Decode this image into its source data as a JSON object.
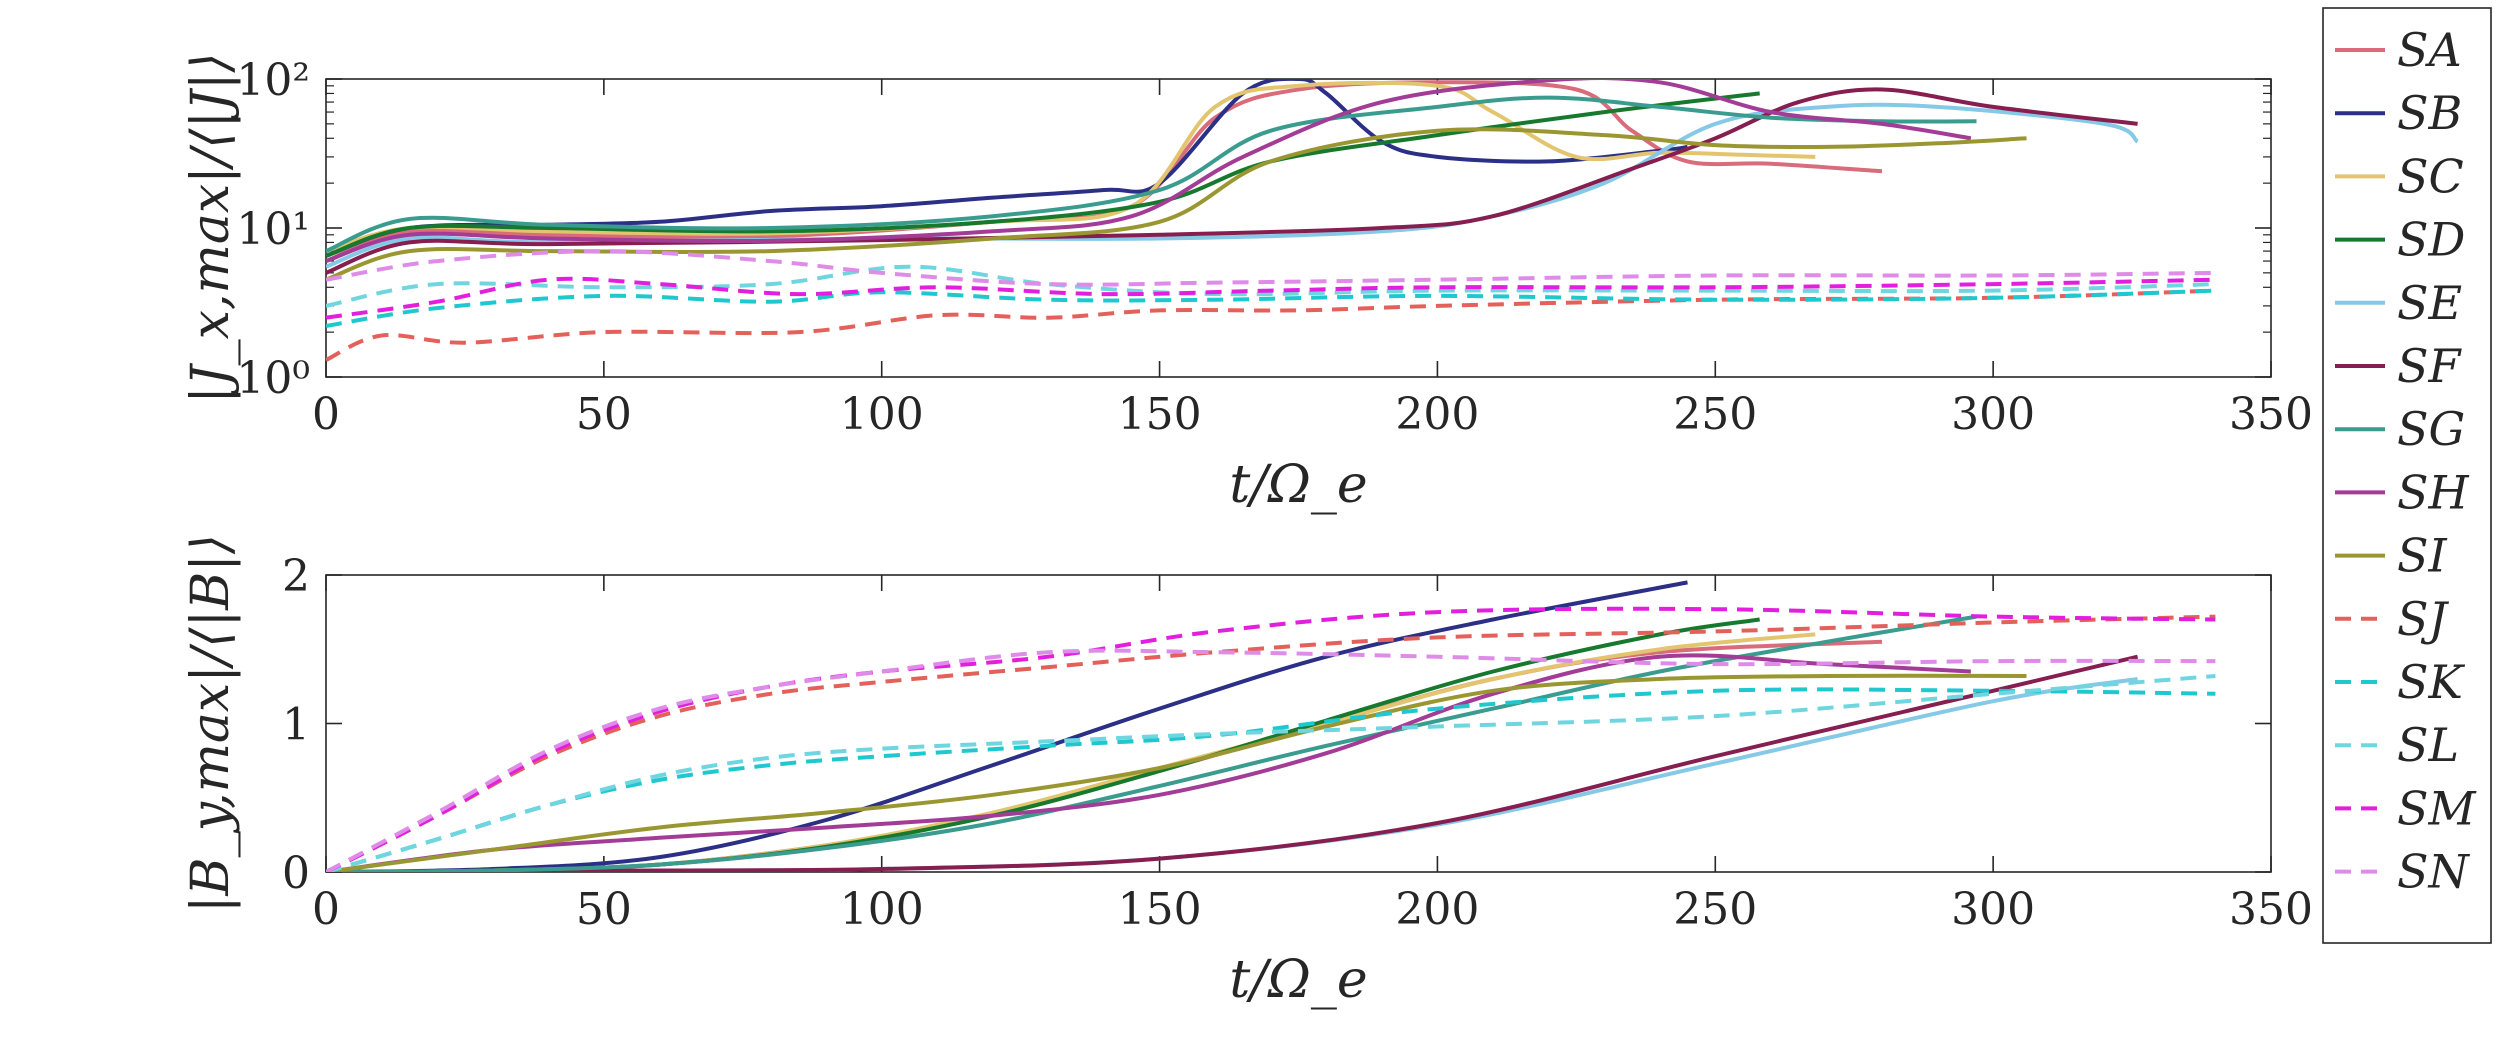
{
  "chart_data": [
    {
      "type": "line",
      "id": "top",
      "xlabel": "t/Ω_e",
      "ylabel": "|J_x,max|/⟨|J|⟩",
      "xlim": [
        0,
        350
      ],
      "ylim": [
        1,
        100
      ],
      "yscale": "log",
      "xticks": [
        0,
        50,
        100,
        150,
        200,
        250,
        300,
        350
      ],
      "xtick_labels": [
        "0",
        "50",
        "100",
        "150",
        "200",
        "250",
        "300",
        "350"
      ],
      "yticks": [
        1,
        10,
        100
      ],
      "ytick_labels": [
        "10⁰",
        "10¹",
        "10²"
      ],
      "series": [
        {
          "name": "SA",
          "x": [
            0,
            15,
            40,
            80,
            120,
            145,
            160,
            175,
            200,
            225,
            235,
            245,
            260,
            280
          ],
          "y": [
            6.0,
            9.5,
            9.0,
            8.8,
            11,
            14,
            55,
            85,
            95,
            85,
            45,
            28,
            27,
            24
          ]
        },
        {
          "name": "SB",
          "x": [
            0,
            15,
            40,
            60,
            80,
            100,
            120,
            140,
            150,
            165,
            175,
            180,
            190,
            200,
            220,
            240,
            245
          ],
          "y": [
            6.5,
            10,
            10.5,
            11,
            13,
            14,
            16,
            18,
            20,
            80,
            100,
            80,
            38,
            30,
            28,
            33,
            35
          ]
        },
        {
          "name": "SC",
          "x": [
            0,
            15,
            40,
            80,
            120,
            145,
            160,
            175,
            200,
            210,
            225,
            240,
            255,
            268
          ],
          "y": [
            7.0,
            10,
            9.5,
            9.2,
            11,
            14,
            65,
            90,
            90,
            60,
            30,
            32,
            31,
            30
          ]
        },
        {
          "name": "SD",
          "x": [
            0,
            15,
            40,
            80,
            120,
            150,
            170,
            200,
            230,
            258
          ],
          "y": [
            6.5,
            10,
            10,
            9.5,
            11,
            15,
            28,
            42,
            60,
            80
          ]
        },
        {
          "name": "SE",
          "x": [
            0,
            15,
            40,
            100,
            150,
            190,
            210,
            230,
            250,
            270,
            290,
            320,
            326
          ],
          "y": [
            5.5,
            8.5,
            8.0,
            8.5,
            8.5,
            9.5,
            12,
            20,
            50,
            65,
            65,
            50,
            38
          ]
        },
        {
          "name": "SF",
          "x": [
            0,
            15,
            40,
            100,
            150,
            190,
            210,
            235,
            250,
            265,
            280,
            300,
            326
          ],
          "y": [
            5.0,
            8.0,
            7.8,
            8.3,
            9.0,
            10,
            12,
            25,
            40,
            70,
            85,
            65,
            50
          ]
        },
        {
          "name": "SG",
          "x": [
            0,
            15,
            40,
            80,
            120,
            150,
            170,
            200,
            220,
            240,
            260,
            280,
            297
          ],
          "y": [
            7.0,
            11.5,
            10.5,
            10,
            12,
            18,
            45,
            65,
            75,
            65,
            55,
            52,
            52
          ]
        },
        {
          "name": "SH",
          "x": [
            0,
            15,
            40,
            80,
            120,
            145,
            165,
            190,
            220,
            240,
            260,
            280,
            296
          ],
          "y": [
            6.0,
            9.0,
            8.5,
            8.2,
            9.5,
            12,
            30,
            70,
            98,
            95,
            60,
            50,
            40
          ]
        },
        {
          "name": "SI",
          "x": [
            0,
            15,
            40,
            80,
            120,
            150,
            170,
            200,
            230,
            250,
            270,
            290,
            306
          ],
          "y": [
            4.5,
            7.0,
            7.0,
            7.0,
            8.5,
            11,
            28,
            45,
            42,
            36,
            35,
            37,
            40
          ]
        },
        {
          "name": "SJ",
          "x": [
            0,
            10,
            25,
            50,
            85,
            110,
            130,
            150,
            175,
            200,
            250,
            300,
            340
          ],
          "y": [
            1.3,
            1.9,
            1.7,
            2.0,
            2.0,
            2.6,
            2.5,
            2.8,
            2.8,
            3.0,
            3.3,
            3.4,
            3.8
          ]
        },
        {
          "name": "SK",
          "x": [
            0,
            20,
            50,
            80,
            100,
            130,
            160,
            200,
            250,
            300,
            340
          ],
          "y": [
            2.2,
            2.9,
            3.5,
            3.2,
            3.7,
            3.3,
            3.3,
            3.5,
            3.3,
            3.4,
            3.8
          ]
        },
        {
          "name": "SL",
          "x": [
            0,
            20,
            50,
            80,
            105,
            130,
            160,
            200,
            250,
            300,
            340
          ],
          "y": [
            3.0,
            4.2,
            4.0,
            4.2,
            5.5,
            4.2,
            3.6,
            3.8,
            3.8,
            3.8,
            4.2
          ]
        },
        {
          "name": "SM",
          "x": [
            0,
            20,
            40,
            60,
            85,
            110,
            140,
            170,
            200,
            250,
            300,
            340
          ],
          "y": [
            2.5,
            3.2,
            4.5,
            4.2,
            3.6,
            4.0,
            3.6,
            3.8,
            4.0,
            4.0,
            4.2,
            4.5
          ]
        },
        {
          "name": "SN",
          "x": [
            0,
            20,
            50,
            80,
            100,
            130,
            160,
            200,
            250,
            300,
            340
          ],
          "y": [
            4.5,
            6.0,
            7.0,
            6.0,
            5.0,
            4.2,
            4.3,
            4.5,
            4.8,
            4.8,
            5.0
          ]
        }
      ]
    },
    {
      "type": "line",
      "id": "bottom",
      "xlabel": "t/Ω_e",
      "ylabel": "|B_y,max|/⟨|B|⟩",
      "xlim": [
        0,
        350
      ],
      "ylim": [
        0,
        2
      ],
      "xticks": [
        0,
        50,
        100,
        150,
        200,
        250,
        300,
        350
      ],
      "xtick_labels": [
        "0",
        "50",
        "100",
        "150",
        "200",
        "250",
        "300",
        "350"
      ],
      "yticks": [
        0,
        1,
        2
      ],
      "ytick_labels": [
        "0",
        "1",
        "2"
      ],
      "series": [
        {
          "name": "SA",
          "x": [
            0,
            30,
            60,
            90,
            120,
            150,
            180,
            210,
            240,
            280
          ],
          "y": [
            0,
            0.01,
            0.05,
            0.18,
            0.38,
            0.68,
            1.0,
            1.3,
            1.48,
            1.55
          ]
        },
        {
          "name": "SB",
          "x": [
            0,
            30,
            60,
            90,
            120,
            150,
            180,
            210,
            245
          ],
          "y": [
            0,
            0.02,
            0.1,
            0.35,
            0.72,
            1.1,
            1.45,
            1.7,
            1.95
          ]
        },
        {
          "name": "SC",
          "x": [
            0,
            30,
            60,
            90,
            120,
            150,
            180,
            210,
            240,
            268
          ],
          "y": [
            0,
            0.01,
            0.05,
            0.18,
            0.4,
            0.7,
            1.0,
            1.3,
            1.5,
            1.6
          ]
        },
        {
          "name": "SD",
          "x": [
            0,
            30,
            60,
            90,
            120,
            150,
            180,
            210,
            240,
            258
          ],
          "y": [
            0,
            0.01,
            0.05,
            0.17,
            0.38,
            0.68,
            1.02,
            1.35,
            1.6,
            1.7
          ]
        },
        {
          "name": "SE",
          "x": [
            0,
            60,
            100,
            150,
            200,
            250,
            300,
            326
          ],
          "y": [
            0,
            0.01,
            0.02,
            0.09,
            0.32,
            0.73,
            1.15,
            1.3
          ]
        },
        {
          "name": "SF",
          "x": [
            0,
            60,
            100,
            150,
            200,
            250,
            300,
            326
          ],
          "y": [
            0,
            0.01,
            0.02,
            0.09,
            0.33,
            0.78,
            1.22,
            1.45
          ]
        },
        {
          "name": "SG",
          "x": [
            0,
            30,
            60,
            90,
            120,
            150,
            180,
            210,
            240,
            270,
            297
          ],
          "y": [
            0,
            0.01,
            0.05,
            0.16,
            0.33,
            0.58,
            0.85,
            1.1,
            1.35,
            1.55,
            1.72
          ]
        },
        {
          "name": "SH",
          "x": [
            0,
            30,
            60,
            90,
            120,
            150,
            180,
            210,
            240,
            270,
            296
          ],
          "y": [
            0,
            0.15,
            0.23,
            0.3,
            0.38,
            0.52,
            0.8,
            1.2,
            1.45,
            1.4,
            1.35
          ]
        },
        {
          "name": "SI",
          "x": [
            0,
            30,
            60,
            90,
            120,
            150,
            180,
            210,
            240,
            270,
            306
          ],
          "y": [
            0,
            0.15,
            0.3,
            0.4,
            0.52,
            0.7,
            0.98,
            1.22,
            1.3,
            1.32,
            1.32
          ]
        },
        {
          "name": "SJ",
          "x": [
            0,
            20,
            40,
            60,
            80,
            100,
            130,
            160,
            200,
            250,
            300,
            340
          ],
          "y": [
            0,
            0.38,
            0.78,
            1.05,
            1.2,
            1.28,
            1.38,
            1.48,
            1.58,
            1.62,
            1.68,
            1.72
          ]
        },
        {
          "name": "SK",
          "x": [
            0,
            20,
            40,
            60,
            80,
            100,
            130,
            160,
            200,
            250,
            300,
            340
          ],
          "y": [
            0,
            0.22,
            0.45,
            0.62,
            0.72,
            0.78,
            0.85,
            0.92,
            1.1,
            1.22,
            1.22,
            1.2
          ]
        },
        {
          "name": "SL",
          "x": [
            0,
            20,
            40,
            60,
            80,
            100,
            130,
            160,
            200,
            250,
            300,
            340
          ],
          "y": [
            0,
            0.22,
            0.45,
            0.65,
            0.77,
            0.83,
            0.88,
            0.93,
            0.98,
            1.05,
            1.2,
            1.32
          ]
        },
        {
          "name": "SM",
          "x": [
            0,
            20,
            40,
            60,
            80,
            100,
            130,
            160,
            200,
            250,
            300,
            340
          ],
          "y": [
            0,
            0.38,
            0.8,
            1.08,
            1.25,
            1.35,
            1.45,
            1.62,
            1.75,
            1.77,
            1.72,
            1.7
          ]
        },
        {
          "name": "SN",
          "x": [
            0,
            20,
            40,
            60,
            80,
            100,
            130,
            160,
            200,
            250,
            300,
            340
          ],
          "y": [
            0,
            0.4,
            0.82,
            1.1,
            1.25,
            1.35,
            1.48,
            1.48,
            1.45,
            1.4,
            1.42,
            1.42
          ]
        }
      ]
    }
  ],
  "legend": {
    "placement": "right-outside",
    "entries": [
      {
        "name": "SA",
        "color": "#d96b7a",
        "style": "solid"
      },
      {
        "name": "SB",
        "color": "#2c2f86",
        "style": "solid"
      },
      {
        "name": "SC",
        "color": "#e2c56e",
        "style": "solid"
      },
      {
        "name": "SD",
        "color": "#17792e",
        "style": "solid"
      },
      {
        "name": "SE",
        "color": "#85c9e6",
        "style": "solid"
      },
      {
        "name": "SF",
        "color": "#861e50",
        "style": "solid"
      },
      {
        "name": "SG",
        "color": "#3a9c8e",
        "style": "solid"
      },
      {
        "name": "SH",
        "color": "#a33c96",
        "style": "solid"
      },
      {
        "name": "SI",
        "color": "#9a9733",
        "style": "solid"
      },
      {
        "name": "SJ",
        "color": "#e4605a",
        "style": "dashed"
      },
      {
        "name": "SK",
        "color": "#1fc8cf",
        "style": "dashed"
      },
      {
        "name": "SL",
        "color": "#6fd6e0",
        "style": "dashed"
      },
      {
        "name": "SM",
        "color": "#e21fde",
        "style": "dashed"
      },
      {
        "name": "SN",
        "color": "#de8ce8",
        "style": "dashed"
      }
    ]
  }
}
